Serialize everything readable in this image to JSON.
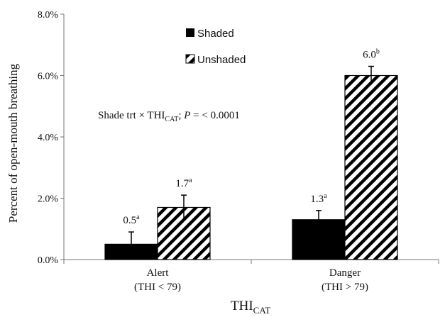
{
  "chart_data": {
    "type": "bar",
    "categories": [
      {
        "line1": "Alert",
        "line2": "(THI < 79)"
      },
      {
        "line1": "Danger",
        "line2": "(THI > 79)"
      }
    ],
    "series": [
      {
        "name": "Shaded",
        "fill": "#000000",
        "values": [
          0.5,
          1.3
        ],
        "errors": [
          0.4,
          0.3
        ],
        "labels": [
          {
            "value": "0.5",
            "sup": "a"
          },
          {
            "value": "1.3",
            "sup": "a"
          }
        ]
      },
      {
        "name": "Unshaded",
        "fill": "hatch",
        "values": [
          1.7,
          6.0
        ],
        "errors": [
          0.4,
          0.3
        ],
        "labels": [
          {
            "value": "1.7",
            "sup": "a"
          },
          {
            "value": "6.0",
            "sup": "b"
          }
        ]
      }
    ],
    "ylabel": "Percent of open-mouth breathing",
    "xlabel": {
      "main": "THI",
      "sub": "CAT"
    },
    "ylim": [
      0,
      8
    ],
    "yticks": [
      "0.0%",
      "2.0%",
      "4.0%",
      "6.0%",
      "8.0%"
    ],
    "annotation": {
      "prefix": "Shade trt × THI",
      "sub": "CAT",
      "suffix": "; ",
      "p_label": "P",
      "p_value": " = < 0.0001"
    },
    "legend_position": "top-center",
    "grid": false
  }
}
